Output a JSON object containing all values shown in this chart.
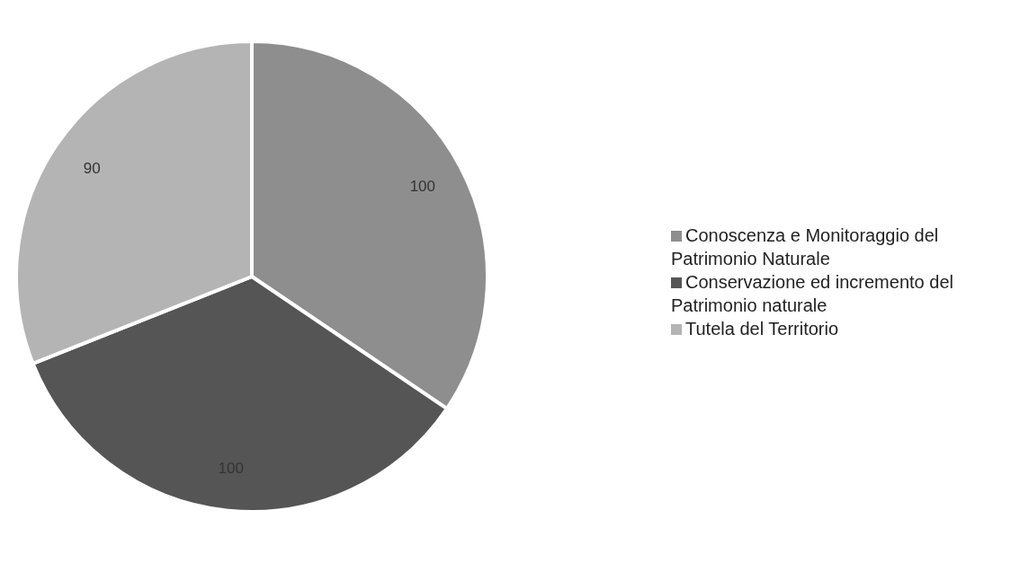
{
  "chart_data": {
    "type": "pie",
    "categories": [
      "Conoscenza e Monitoraggio del Patrimonio Naturale",
      "Conservazione ed incremento del Patrimonio naturale",
      "Tutela del Territorio"
    ],
    "values": [
      100,
      100,
      90
    ],
    "colors": [
      "#8e8e8e",
      "#555555",
      "#b4b4b4"
    ],
    "data_labels": true,
    "legend": "right"
  }
}
